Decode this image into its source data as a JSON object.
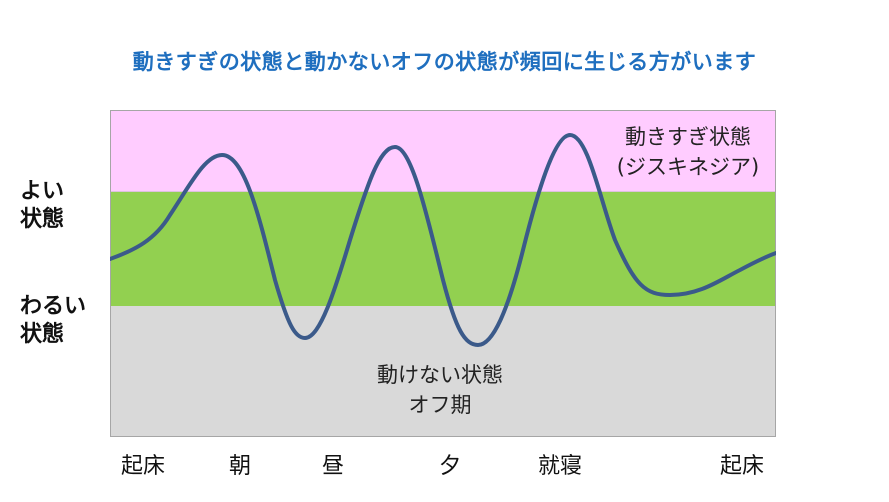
{
  "title": "動きすぎの状態と動かないオフの状態が頻回に生じる方がいます",
  "y_labels": {
    "good_line1": "よい",
    "good_line2": "状態",
    "bad_line1": "わるい",
    "bad_line2": "状態"
  },
  "zones": {
    "dyskinesia_line1": "動きすぎ状態",
    "dyskinesia_line2": "(ジスキネジア)",
    "off_line1": "動けない状態",
    "off_line2": "オフ期"
  },
  "x_labels": [
    "起床",
    "朝",
    "昼",
    "夕",
    "就寝",
    "起床"
  ],
  "colors": {
    "title": "#1f6fbf",
    "dyskinesia_zone": "#ffccff",
    "good_zone": "#92d050",
    "off_zone": "#d9d9d9",
    "curve": "#3b5a8a"
  }
}
